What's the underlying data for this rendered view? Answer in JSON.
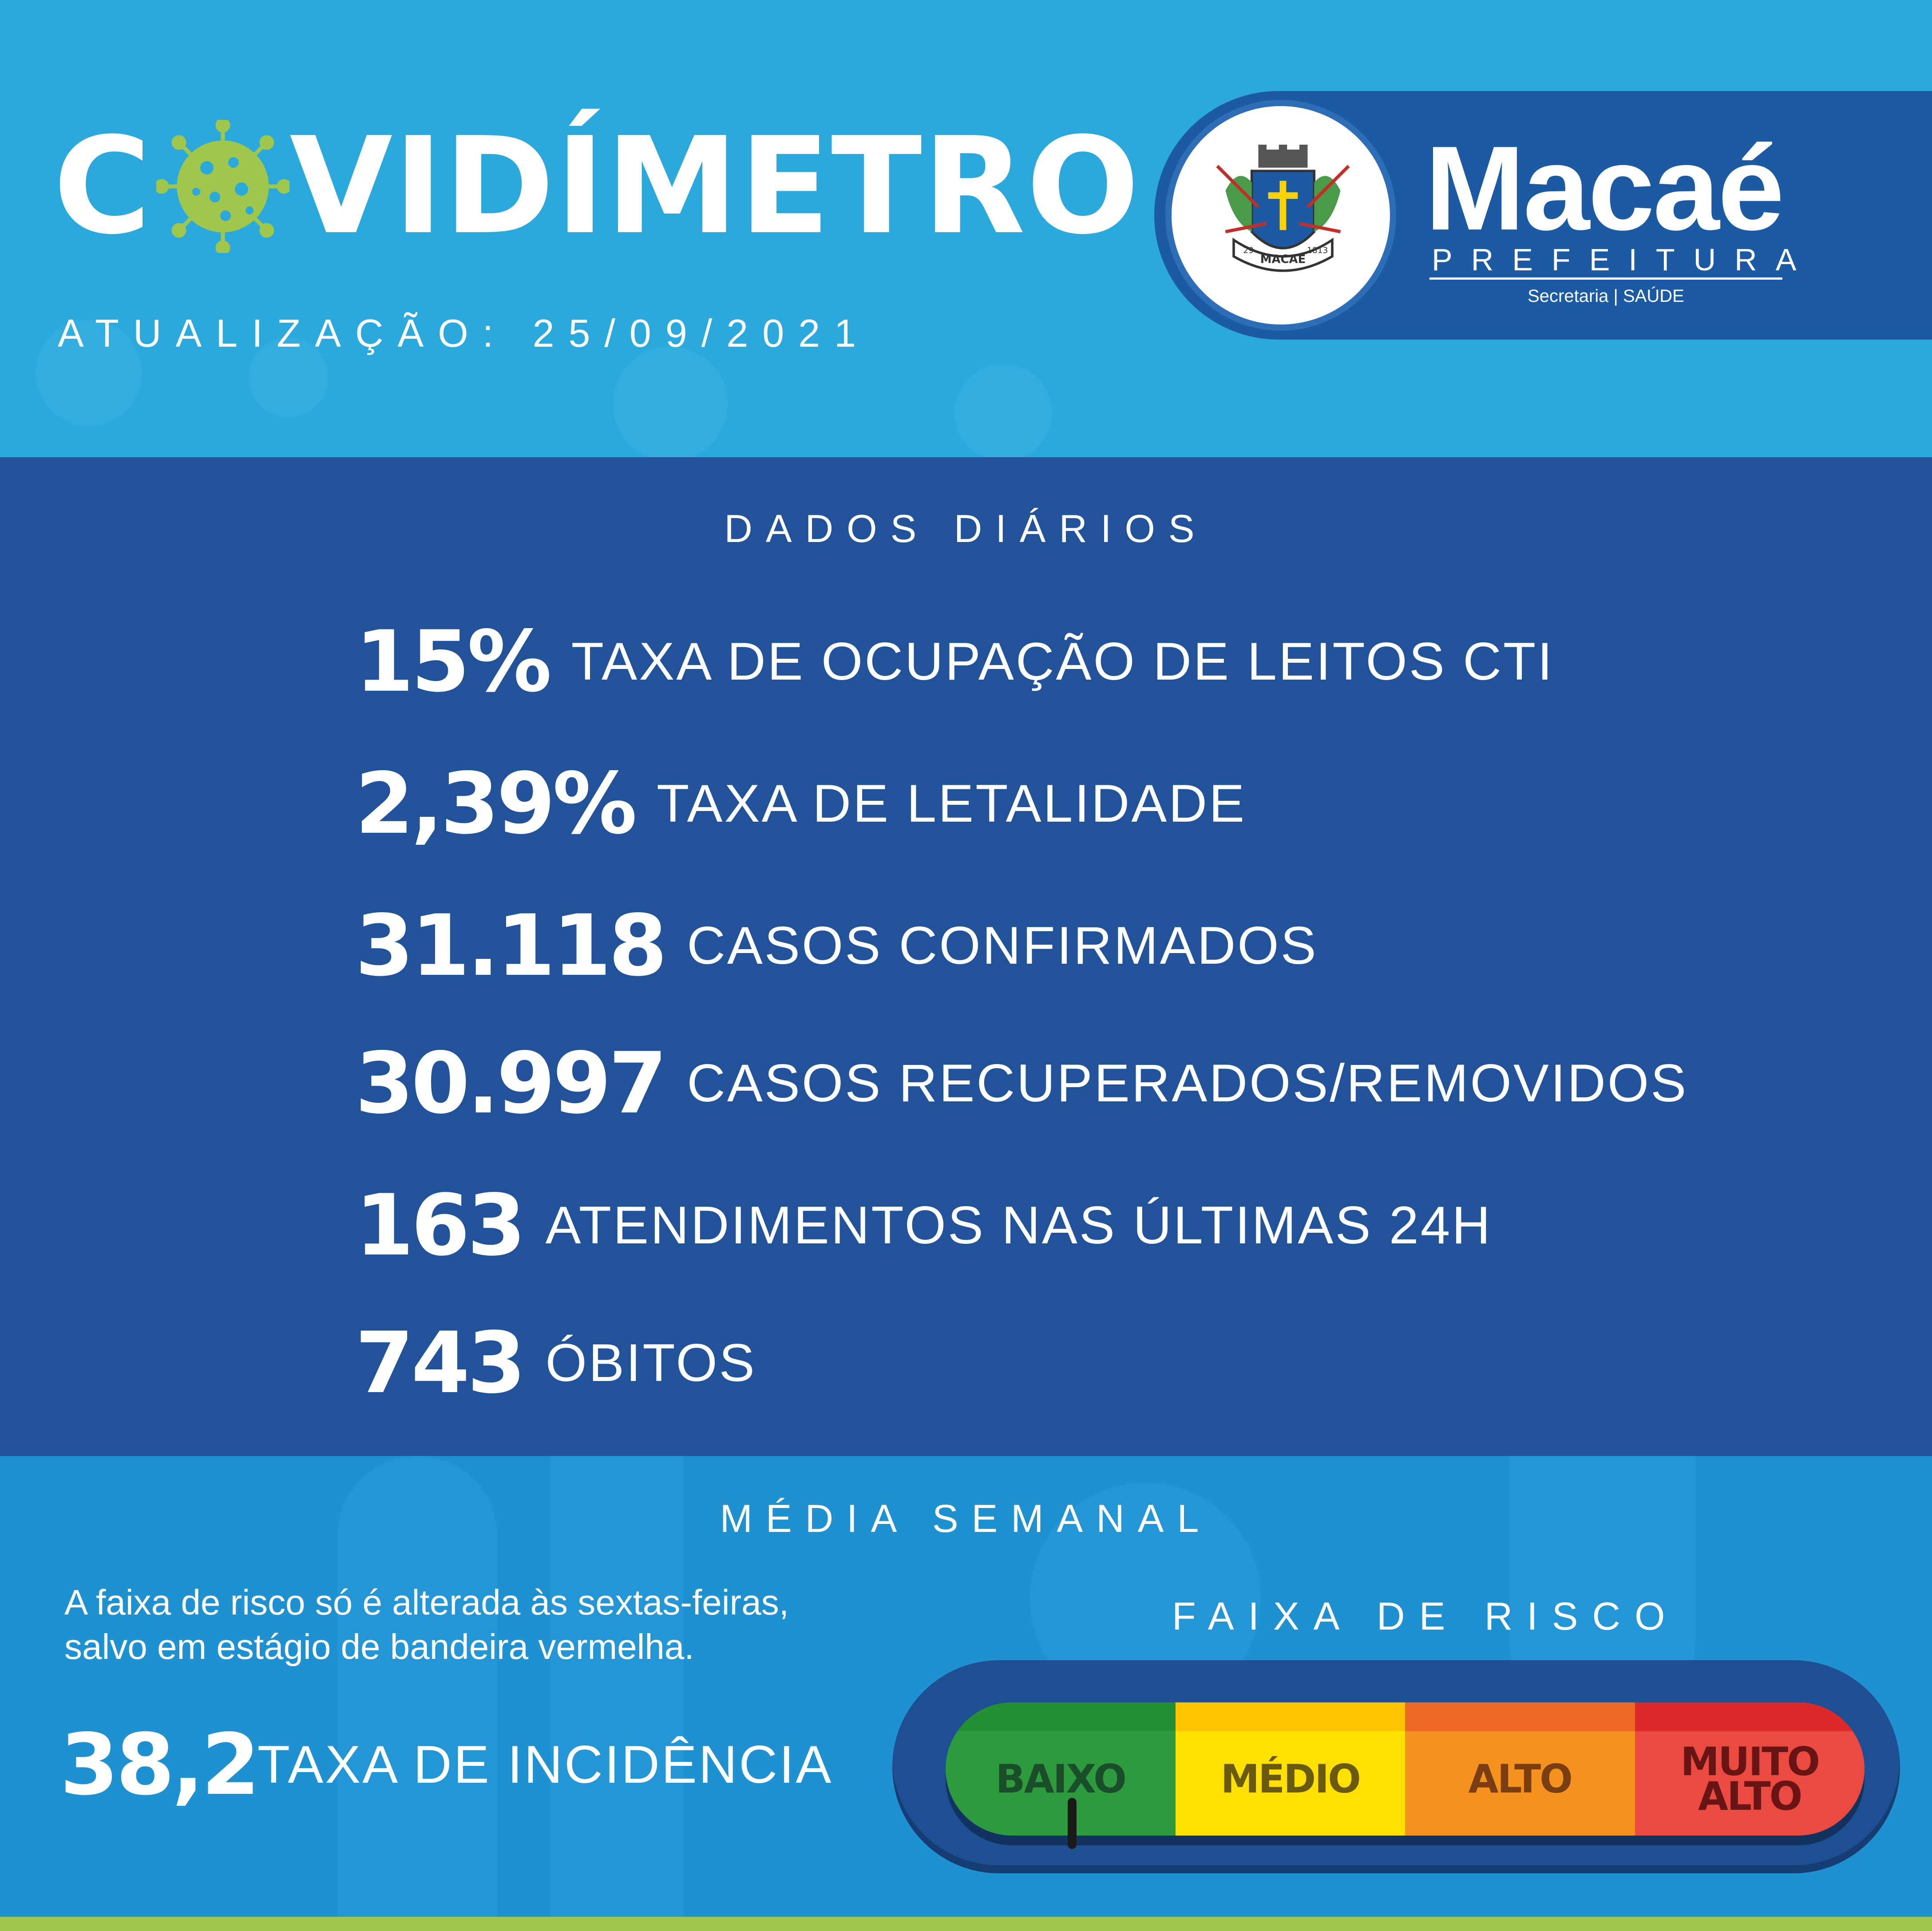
{
  "header": {
    "title_prefix": "C",
    "title_suffix": "VIDÍMETRO",
    "update": "ATUALIZAÇÃO: 25/09/2021"
  },
  "brand": {
    "name": "Macaé",
    "subtitle": "PREFEITURA",
    "department": "Secretaria | SAÚDE",
    "seal_text": "MACAÉ",
    "seal_year_left": "29",
    "seal_year_right": "1813"
  },
  "daily": {
    "title": "DADOS DIÁRIOS",
    "stats": [
      {
        "value": "15%",
        "label": "TAXA DE OCUPAÇÃO DE LEITOS CTI"
      },
      {
        "value": "2,39%",
        "label": "TAXA DE LETALIDADE"
      },
      {
        "value": "31.118",
        "label": "CASOS CONFIRMADOS"
      },
      {
        "value": "30.997",
        "label": "CASOS RECUPERADOS/REMOVIDOS"
      },
      {
        "value": "163",
        "label": "ATENDIMENTOS NAS ÚLTIMAS 24H"
      },
      {
        "value": "743",
        "label": "ÓBITOS"
      }
    ]
  },
  "weekly": {
    "title": "MÉDIA SEMANAL",
    "note_line1": "A faixa de risco só é alterada às sextas-feiras,",
    "note_line2": "salvo em estágio de bandeira vermelha.",
    "incidence_value": "38,2",
    "incidence_label": "TAXA DE INCIDÊNCIA"
  },
  "risk": {
    "title": "FAIXA DE RISCO",
    "current_level": "BAIXO",
    "levels": [
      {
        "label": "BAIXO",
        "color": "#2e9a3e",
        "shade": "#249034",
        "text_color": "#1a4d2a"
      },
      {
        "label": "MÉDIO",
        "color": "#ffe000",
        "shade": "#ffc400",
        "text_color": "#6a5a10"
      },
      {
        "label": "ALTO",
        "color": "#f5921f",
        "shade": "#ee6a24",
        "text_color": "#7a3d10"
      },
      {
        "label": "MUITO\nALTO",
        "color": "#ea4a40",
        "shade": "#dc2a2a",
        "text_color": "#6a1515"
      }
    ]
  },
  "colors": {
    "header_bg": "#2ba8dc",
    "daily_bg": "#22539a",
    "weekly_bg": "#2091d0",
    "virus_green": "#9ec74c",
    "bottom_strip": "#9ec74c"
  }
}
